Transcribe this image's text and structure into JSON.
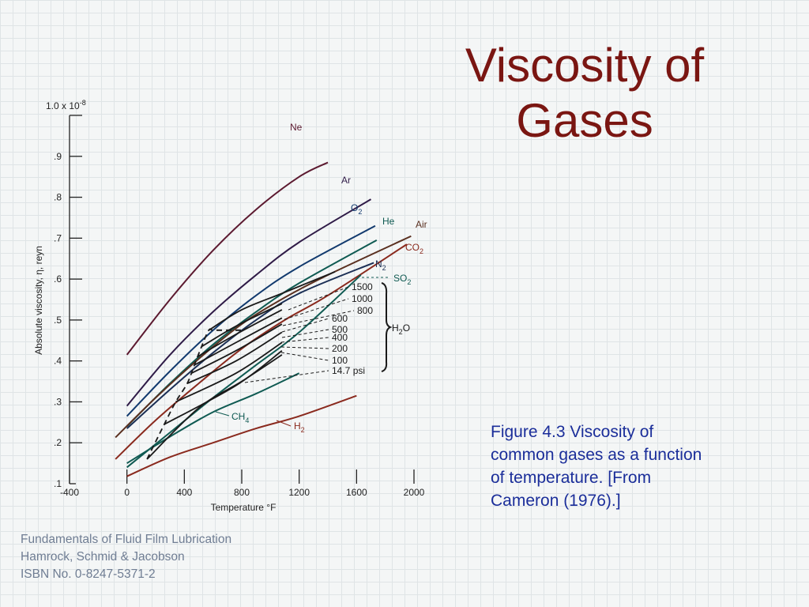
{
  "slide": {
    "title_lines": [
      "Viscosity of",
      "Gases"
    ],
    "caption_lines": [
      "Figure 4.3   Viscosity of",
      "common gases as a function",
      "of temperature. [From",
      "Cameron (1976).]"
    ],
    "footer_lines": [
      "Fundamentals of Fluid Film Lubrication",
      "Hamrock, Schmid & Jacobson",
      "ISBN No. 0-8247-5371-2"
    ],
    "colors": {
      "title": "#7a1612",
      "caption": "#1b2e9a",
      "footer": "#6f7d93"
    }
  },
  "chart_data": {
    "type": "line",
    "xlabel": "Temperature  °F",
    "ylabel": "Absolute viscosity,  η,  reyn",
    "xlim": [
      -400,
      2000
    ],
    "ylim": [
      0.1,
      1.0
    ],
    "x_ticks": [
      -400,
      0,
      400,
      800,
      1200,
      1600,
      2000
    ],
    "x_tick_labels": [
      "-400",
      "0",
      "400",
      "800",
      "1200",
      "1600",
      "2000"
    ],
    "y_ticks": [
      0.1,
      0.2,
      0.3,
      0.4,
      0.5,
      0.6,
      0.7,
      0.8,
      0.9
    ],
    "y_tick_labels": [
      ".1",
      ".2",
      ".3",
      ".4",
      ".5",
      ".6",
      ".7",
      ".8",
      ".9"
    ],
    "y_top_label": {
      "base": "1.0 x 10",
      "exp": "-8"
    },
    "series": [
      {
        "name": "Ne",
        "color": "#5c1a30",
        "x": [
          0,
          300,
          600,
          900,
          1200,
          1400
        ],
        "y": [
          0.415,
          0.55,
          0.67,
          0.77,
          0.85,
          0.885
        ]
      },
      {
        "name": "Ar",
        "color": "#2f1b47",
        "x": [
          0,
          300,
          600,
          900,
          1200,
          1700
        ],
        "y": [
          0.29,
          0.415,
          0.52,
          0.61,
          0.69,
          0.795
        ]
      },
      {
        "name": "O",
        "sub": "2",
        "color": "#123a6e",
        "x": [
          0,
          300,
          600,
          900,
          1200,
          1730
        ],
        "y": [
          0.265,
          0.375,
          0.475,
          0.56,
          0.63,
          0.73
        ]
      },
      {
        "name": "He",
        "color": "#0f5a52",
        "x": [
          0,
          300,
          600,
          900,
          1200,
          1740
        ],
        "y": [
          0.24,
          0.345,
          0.44,
          0.52,
          0.59,
          0.695
        ]
      },
      {
        "name": "Air",
        "color": "#5a3020",
        "x": [
          -80,
          200,
          500,
          800,
          1100,
          1400,
          1980
        ],
        "y": [
          0.213,
          0.31,
          0.405,
          0.49,
          0.555,
          0.61,
          0.705
        ]
      },
      {
        "name": "CO",
        "sub": "2",
        "color": "#8a2a1e",
        "x": [
          -80,
          200,
          500,
          800,
          1100,
          1400,
          1950
        ],
        "y": [
          0.16,
          0.255,
          0.345,
          0.43,
          0.5,
          0.56,
          0.685
        ]
      },
      {
        "name": "N",
        "sub": "2",
        "color": "#1b2f55",
        "x": [
          0,
          300,
          600,
          900,
          1200,
          1720
        ],
        "y": [
          0.235,
          0.33,
          0.42,
          0.5,
          0.565,
          0.64
        ]
      },
      {
        "name": "SO",
        "sub": "2",
        "color": "#0f5a52",
        "x": [
          0,
          300,
          600,
          900,
          1200,
          1630
        ],
        "y": [
          0.14,
          0.225,
          0.31,
          0.39,
          0.47,
          0.61
        ]
      },
      {
        "name": "CH",
        "sub": "4",
        "color": "#0f5a52",
        "x": [
          0,
          300,
          600,
          900,
          1200
        ],
        "y": [
          0.15,
          0.215,
          0.275,
          0.32,
          0.37
        ]
      },
      {
        "name": "H",
        "sub": "2",
        "color": "#8a2a1e",
        "x": [
          0,
          300,
          600,
          900,
          1200,
          1600
        ],
        "y": [
          0.118,
          0.165,
          0.2,
          0.235,
          0.265,
          0.315
        ]
      }
    ],
    "h2o": {
      "label": "H",
      "sub": "2",
      "suffix": "O",
      "color": "#1a1a1a",
      "pressures": [
        {
          "label": "1500",
          "x": [
            570,
            800,
            1080,
            1450
          ],
          "y": [
            0.475,
            0.525,
            0.565,
            0.618
          ]
        },
        {
          "label": "1000",
          "x": [
            520,
            760,
            1080
          ],
          "y": [
            0.435,
            0.485,
            0.54
          ]
        },
        {
          "label": "800",
          "x": [
            490,
            760,
            1080
          ],
          "y": [
            0.41,
            0.465,
            0.525
          ]
        },
        {
          "label": "600",
          "x": [
            470,
            760,
            1080
          ],
          "y": [
            0.39,
            0.445,
            0.505
          ]
        },
        {
          "label": "500",
          "x": [
            450,
            760,
            1080
          ],
          "y": [
            0.37,
            0.425,
            0.49
          ]
        },
        {
          "label": "400",
          "x": [
            420,
            760,
            1080
          ],
          "y": [
            0.345,
            0.4,
            0.47
          ]
        },
        {
          "label": "200",
          "x": [
            340,
            760,
            1080
          ],
          "y": [
            0.3,
            0.37,
            0.445
          ]
        },
        {
          "label": "100",
          "x": [
            260,
            760,
            1080
          ],
          "y": [
            0.245,
            0.34,
            0.425
          ]
        },
        {
          "label": "14.7 psi",
          "x": [
            140,
            500,
            800,
            1080
          ],
          "y": [
            0.16,
            0.285,
            0.35,
            0.415
          ]
        }
      ],
      "saturation_line": {
        "x": [
          140,
          260,
          340,
          420,
          470,
          520,
          570,
          600,
          700,
          760,
          800
        ],
        "y": [
          0.16,
          0.245,
          0.3,
          0.345,
          0.39,
          0.435,
          0.475,
          0.475,
          0.475,
          0.475,
          0.475
        ]
      }
    }
  }
}
